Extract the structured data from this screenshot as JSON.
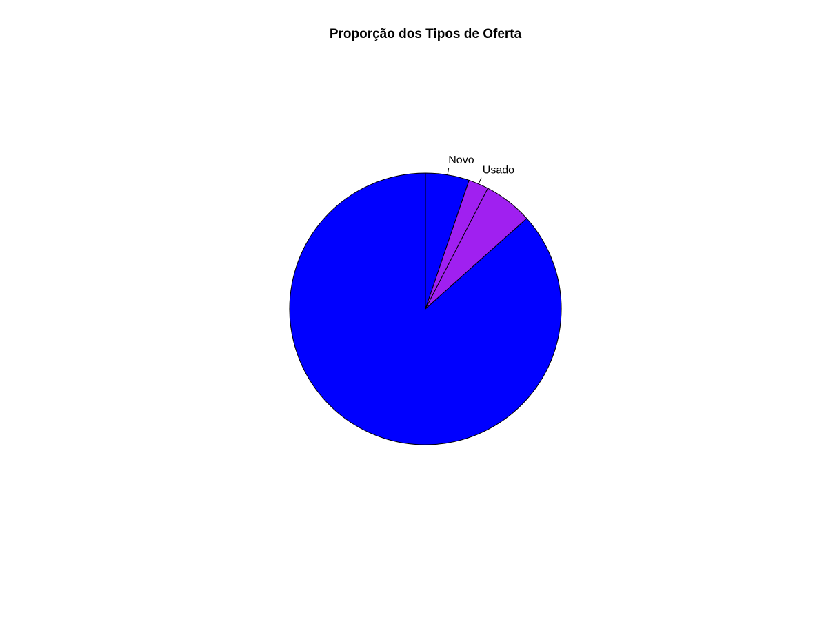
{
  "chart_data": {
    "type": "pie",
    "title": "Proporção dos Tipos de Oferta",
    "slices": [
      {
        "label": "Novo",
        "value": 5.2,
        "color": "#0000FF",
        "show_label": true
      },
      {
        "label": "Usado",
        "value": 2.4,
        "color": "#A020F0",
        "show_label": true
      },
      {
        "label": "",
        "value": 5.8,
        "color": "#A020F0",
        "show_label": false
      },
      {
        "label": "",
        "value": 86.6,
        "color": "#0000FF",
        "show_label": false
      }
    ],
    "start_angle": "12 o'clock",
    "direction": "clockwise",
    "legend": "none"
  }
}
